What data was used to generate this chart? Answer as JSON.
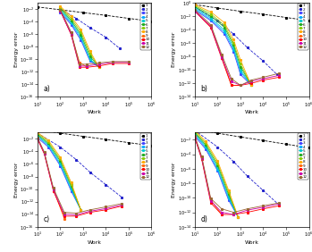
{
  "colors": [
    "#000000",
    "#2222cc",
    "#4444ff",
    "#00aaff",
    "#00cccc",
    "#22aa22",
    "#88cc00",
    "#ffaa00",
    "#ff6600",
    "#ff0000",
    "#cc00aa",
    "#996633"
  ],
  "labels": [
    "1",
    "2",
    "3",
    "4",
    "5",
    "6",
    "7",
    "8",
    "9",
    "10",
    "11",
    "12"
  ],
  "panel_labels": [
    "a)",
    "b)",
    "c)",
    "d)"
  ],
  "xlabel": "Work",
  "ylabel": "Energy error",
  "panels": {
    "a": {
      "xlim": [
        10,
        1000000.0
      ],
      "ylim": [
        1e-16,
        0.1
      ],
      "series": [
        {
          "x": [
            10.0,
            100.0,
            1000.0,
            10000.0,
            100000.0,
            1000000.0
          ],
          "y": [
            0.02,
            0.007,
            0.0025,
            0.0009,
            0.0003,
            0.0001
          ]
        },
        {
          "x": [
            100.0,
            500.0,
            2000.0,
            10000.0,
            40000.0
          ],
          "y": [
            0.01,
            0.0003,
            1e-05,
            3e-07,
            5e-09
          ]
        },
        {
          "x": [
            100.0,
            300.0,
            800.0,
            2000.0,
            5000.0
          ],
          "y": [
            0.003,
            3e-05,
            1e-07,
            5e-11,
            5e-12
          ]
        },
        {
          "x": [
            100.0,
            300.0,
            800.0,
            2000.0,
            5000.0
          ],
          "y": [
            0.005,
            5e-05,
            2e-07,
            8e-11,
            5e-12
          ]
        },
        {
          "x": [
            100.0,
            300.0,
            800.0,
            2000.0,
            5000.0
          ],
          "y": [
            0.008,
            8e-05,
            4e-07,
            1e-10,
            5e-12
          ]
        },
        {
          "x": [
            100.0,
            300.0,
            800.0,
            2000.0,
            5000.0
          ],
          "y": [
            0.012,
            0.00015,
            8e-07,
            3e-10,
            5e-12
          ]
        },
        {
          "x": [
            100.0,
            300.0,
            800.0,
            2000.0,
            5000.0
          ],
          "y": [
            0.018,
            0.0003,
            2e-06,
            8e-10,
            5e-12
          ]
        },
        {
          "x": [
            100.0,
            300.0,
            800.0,
            2000.0,
            5000.0
          ],
          "y": [
            0.025,
            0.0006,
            5e-06,
            2e-09,
            5e-12
          ]
        },
        {
          "x": [
            100.0,
            300.0,
            700.0,
            1500.0
          ],
          "y": [
            0.005,
            1e-06,
            3e-11,
            5e-12
          ]
        },
        {
          "x": [
            100.0,
            300.0,
            700.0,
            1500.0,
            5000.0,
            20000.0,
            100000.0
          ],
          "y": [
            0.005,
            8e-07,
            5e-12,
            5e-12,
            8e-12,
            2e-11,
            2e-11
          ]
        },
        {
          "x": [
            100.0,
            300.0,
            700.0,
            1500.0,
            5000.0,
            20000.0,
            100000.0
          ],
          "y": [
            0.005,
            1e-06,
            8e-12,
            8e-12,
            1.5e-11,
            3e-11,
            3e-11
          ]
        },
        {
          "x": [
            100.0,
            300.0,
            700.0,
            1500.0,
            5000.0,
            20000.0,
            100000.0
          ],
          "y": [
            0.008,
            2e-06,
            1.5e-11,
            1.5e-11,
            2.5e-11,
            4e-11,
            4e-11
          ]
        }
      ]
    },
    "b": {
      "xlim": [
        10,
        1000000.0
      ],
      "ylim": [
        1e-14,
        1.0
      ],
      "series": [
        {
          "x": [
            10.0,
            100.0,
            1000.0,
            10000.0,
            100000.0,
            1000000.0
          ],
          "y": [
            0.5,
            0.15,
            0.05,
            0.018,
            0.006,
            0.002
          ]
        },
        {
          "x": [
            10.0,
            100.0,
            500.0,
            2000.0,
            10000.0,
            40000.0
          ],
          "y": [
            0.2,
            0.002,
            2e-05,
            2e-07,
            2e-09,
            2e-11
          ]
        },
        {
          "x": [
            10.0,
            50.0,
            200.0,
            500.0,
            1000.0,
            3000.0
          ],
          "y": [
            0.08,
            0.002,
            2e-05,
            5e-08,
            2e-11,
            5e-13
          ]
        },
        {
          "x": [
            10.0,
            50.0,
            200.0,
            500.0,
            1000.0,
            3000.0
          ],
          "y": [
            0.12,
            0.003,
            4e-05,
            1e-07,
            5e-11,
            5e-13
          ]
        },
        {
          "x": [
            10.0,
            50.0,
            200.0,
            500.0,
            1000.0,
            3000.0
          ],
          "y": [
            0.18,
            0.005,
            8e-05,
            2e-07,
            1e-10,
            5e-13
          ]
        },
        {
          "x": [
            10.0,
            50.0,
            200.0,
            500.0,
            1000.0,
            3000.0
          ],
          "y": [
            0.25,
            0.01,
            0.0002,
            5e-07,
            3e-10,
            5e-13
          ]
        },
        {
          "x": [
            10.0,
            50.0,
            200.0,
            500.0,
            1000.0,
            3000.0
          ],
          "y": [
            0.35,
            0.02,
            0.0004,
            1e-06,
            8e-10,
            5e-13
          ]
        },
        {
          "x": [
            10.0,
            50.0,
            200.0,
            500.0,
            1000.0,
            3000.0
          ],
          "y": [
            0.5,
            0.04,
            0.001,
            3e-06,
            3e-09,
            5e-13
          ]
        },
        {
          "x": [
            10.0,
            50.0,
            150.0,
            400.0,
            1000.0
          ],
          "y": [
            0.05,
            0.0003,
            1e-08,
            5e-13,
            5e-13
          ]
        },
        {
          "x": [
            10.0,
            50.0,
            150.0,
            400.0,
            1000.0,
            3000.0,
            10000.0,
            50000.0
          ],
          "y": [
            0.05,
            0.0002,
            5e-09,
            5e-13,
            5e-13,
            1e-12,
            3e-12,
            8e-12
          ]
        },
        {
          "x": [
            10.0,
            50.0,
            150.0,
            400.0,
            1000.0,
            3000.0,
            10000.0,
            50000.0
          ],
          "y": [
            0.05,
            0.0003,
            8e-09,
            2e-12,
            5e-13,
            2e-12,
            5e-12,
            1.5e-11
          ]
        },
        {
          "x": [
            10.0,
            50.0,
            150.0,
            400.0,
            1000.0,
            3000.0,
            10000.0,
            50000.0
          ],
          "y": [
            0.08,
            0.0005,
            2e-08,
            5e-12,
            5e-13,
            3e-12,
            8e-12,
            3e-11
          ]
        }
      ]
    },
    "c": {
      "xlim": [
        10,
        1000000.0
      ],
      "ylim": [
        1e-16,
        0.1
      ],
      "series": [
        {
          "x": [
            10.0,
            100.0,
            1000.0,
            10000.0,
            100000.0,
            1000000.0
          ],
          "y": [
            0.3,
            0.08,
            0.025,
            0.008,
            0.0025,
            0.0008
          ]
        },
        {
          "x": [
            10.0,
            100.0,
            500.0,
            2000.0,
            10000.0,
            50000.0
          ],
          "y": [
            0.08,
            0.0005,
            5e-06,
            5e-08,
            5e-10,
            5e-12
          ]
        },
        {
          "x": [
            10.0,
            30.0,
            100.0,
            300.0,
            800.0
          ],
          "y": [
            0.015,
            0.0005,
            5e-07,
            5e-11,
            5e-14
          ]
        },
        {
          "x": [
            10.0,
            30.0,
            100.0,
            300.0,
            800.0
          ],
          "y": [
            0.025,
            0.0008,
            8e-07,
            8e-11,
            5e-14
          ]
        },
        {
          "x": [
            10.0,
            30.0,
            100.0,
            300.0,
            800.0
          ],
          "y": [
            0.035,
            0.0012,
            1.5e-06,
            1.5e-10,
            5e-14
          ]
        },
        {
          "x": [
            10.0,
            30.0,
            100.0,
            300.0,
            800.0
          ],
          "y": [
            0.05,
            0.002,
            3e-06,
            3e-10,
            5e-14
          ]
        },
        {
          "x": [
            10.0,
            30.0,
            100.0,
            300.0,
            800.0
          ],
          "y": [
            0.07,
            0.0035,
            6e-06,
            6e-10,
            5e-14
          ]
        },
        {
          "x": [
            10.0,
            30.0,
            100.0,
            300.0,
            800.0
          ],
          "y": [
            0.1,
            0.006,
            1.2e-05,
            1.2e-09,
            5e-14
          ]
        },
        {
          "x": [
            10.0,
            20.0,
            50.0,
            150.0
          ],
          "y": [
            0.01,
            5e-05,
            1e-10,
            2e-15
          ]
        },
        {
          "x": [
            10.0,
            20.0,
            50.0,
            150.0,
            500.0,
            2000.0,
            10000.0,
            50000.0
          ],
          "y": [
            0.01,
            4e-05,
            5e-11,
            5e-15,
            5e-15,
            2e-14,
            5e-14,
            2e-13
          ]
        },
        {
          "x": [
            10.0,
            20.0,
            50.0,
            150.0,
            500.0,
            2000.0,
            10000.0,
            50000.0
          ],
          "y": [
            0.012,
            5e-05,
            8e-11,
            1e-14,
            8e-15,
            3e-14,
            8e-14,
            3e-13
          ]
        },
        {
          "x": [
            10.0,
            20.0,
            50.0,
            150.0,
            500.0,
            2000.0,
            10000.0,
            50000.0
          ],
          "y": [
            0.018,
            8e-05,
            1.5e-10,
            2e-14,
            1.5e-14,
            5e-14,
            1.5e-13,
            5e-13
          ]
        }
      ]
    },
    "d": {
      "xlim": [
        10,
        1000000.0
      ],
      "ylim": [
        1e-14,
        0.1
      ],
      "series": [
        {
          "x": [
            10.0,
            100.0,
            1000.0,
            10000.0,
            100000.0,
            1000000.0
          ],
          "y": [
            0.3,
            0.08,
            0.025,
            0.008,
            0.0025,
            0.0008
          ]
        },
        {
          "x": [
            10.0,
            100.0,
            500.0,
            2000.0,
            10000.0,
            50000.0
          ],
          "y": [
            0.2,
            0.001,
            1e-05,
            1e-07,
            1e-09,
            1e-11
          ]
        },
        {
          "x": [
            10.0,
            30.0,
            100.0,
            300.0,
            800.0
          ],
          "y": [
            0.03,
            0.0005,
            5e-07,
            5e-11,
            2e-13
          ]
        },
        {
          "x": [
            10.0,
            30.0,
            100.0,
            300.0,
            800.0
          ],
          "y": [
            0.05,
            0.0008,
            8e-07,
            8e-11,
            2e-13
          ]
        },
        {
          "x": [
            10.0,
            30.0,
            100.0,
            300.0,
            800.0
          ],
          "y": [
            0.07,
            0.0012,
            1.5e-06,
            1.5e-10,
            2e-13
          ]
        },
        {
          "x": [
            10.0,
            30.0,
            100.0,
            300.0,
            800.0
          ],
          "y": [
            0.1,
            0.002,
            3e-06,
            3e-10,
            2e-13
          ]
        },
        {
          "x": [
            10.0,
            30.0,
            100.0,
            300.0,
            800.0
          ],
          "y": [
            0.14,
            0.0035,
            6e-06,
            6e-10,
            2e-13
          ]
        },
        {
          "x": [
            10.0,
            30.0,
            100.0,
            300.0,
            800.0
          ],
          "y": [
            0.2,
            0.006,
            1.2e-05,
            1.2e-09,
            2e-13
          ]
        },
        {
          "x": [
            10.0,
            20.0,
            50.0,
            150.0
          ],
          "y": [
            0.02,
            3e-05,
            5e-11,
            5e-13
          ]
        },
        {
          "x": [
            10.0,
            20.0,
            50.0,
            150.0,
            500.0,
            2000.0,
            10000.0,
            50000.0
          ],
          "y": [
            0.02,
            2e-05,
            2e-11,
            5e-13,
            5e-13,
            1e-12,
            3e-12,
            8e-12
          ]
        },
        {
          "x": [
            10.0,
            20.0,
            50.0,
            150.0,
            500.0,
            2000.0,
            10000.0,
            50000.0
          ],
          "y": [
            0.025,
            3e-05,
            4e-11,
            1e-12,
            5e-13,
            2e-12,
            5e-12,
            1.5e-11
          ]
        },
        {
          "x": [
            10.0,
            20.0,
            50.0,
            150.0,
            500.0,
            2000.0,
            10000.0,
            50000.0
          ],
          "y": [
            0.035,
            5e-05,
            8e-11,
            3e-12,
            1e-12,
            3e-12,
            8e-12,
            2e-11
          ]
        }
      ]
    }
  }
}
